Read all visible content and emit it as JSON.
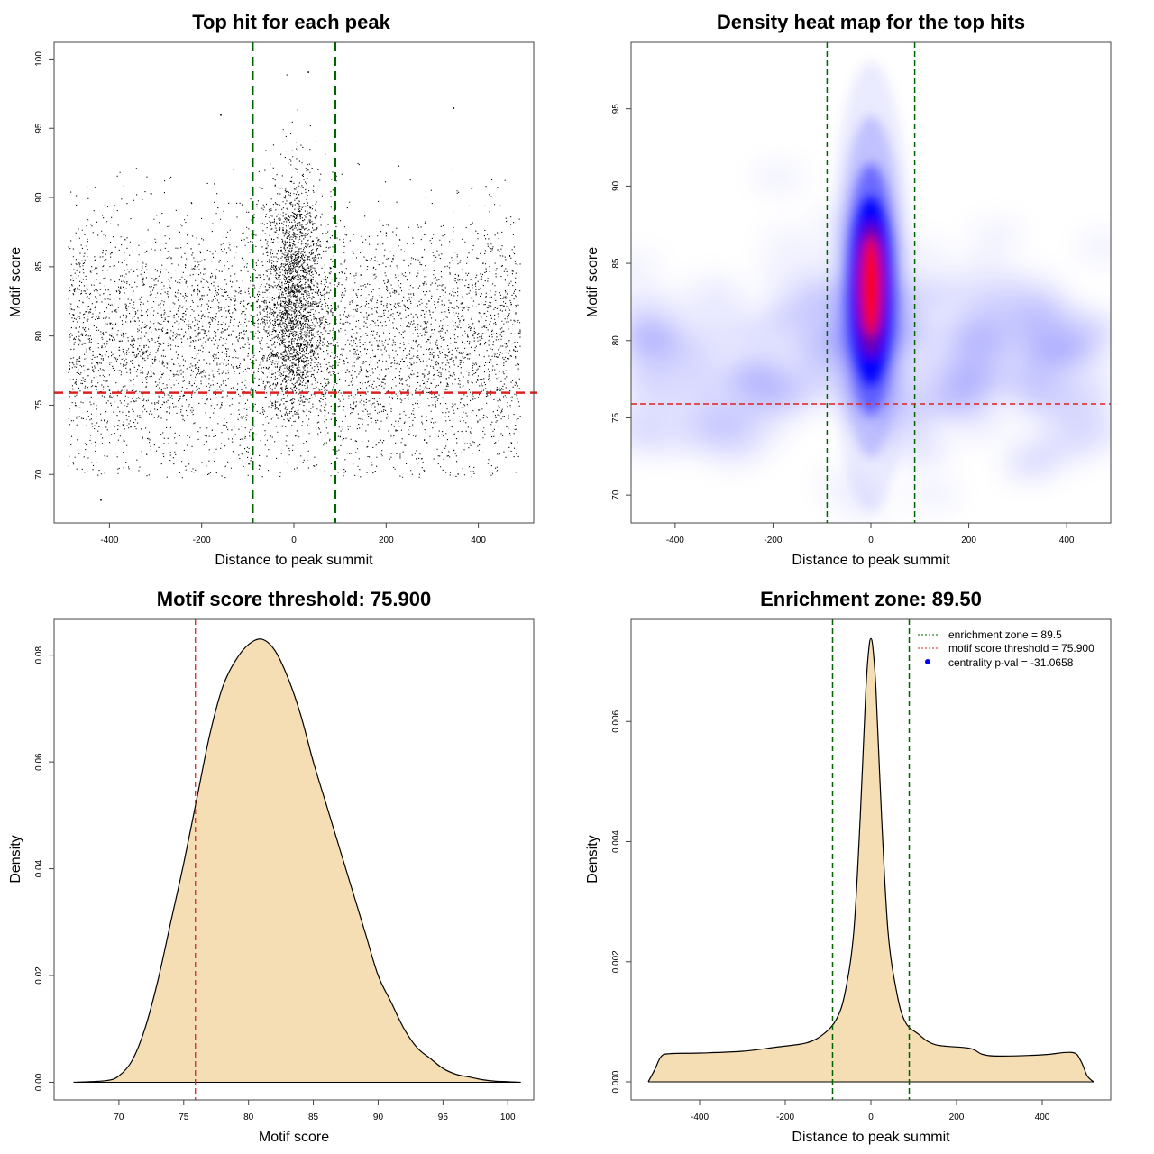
{
  "chart_data": [
    {
      "id": "scatter",
      "type": "scatter",
      "title": "Top hit for each peak",
      "xlabel": "Distance to peak summit",
      "ylabel": "Motif score",
      "xlim": [
        -520,
        520
      ],
      "ylim": [
        66.5,
        101.2
      ],
      "xticks": [
        -400,
        -200,
        0,
        200,
        400
      ],
      "yticks": [
        70,
        75,
        80,
        85,
        90,
        95,
        100
      ],
      "vlines": [
        -89.5,
        89.5
      ],
      "hline": 75.9,
      "line_colors": {
        "vline": "#006400",
        "hline": "#dd2222"
      },
      "point_color": "#000000",
      "distribution": {
        "background": {
          "x_range": [
            -490,
            490
          ],
          "y_mean": 79.5,
          "y_sd": 4.5,
          "approx_count": 6000
        },
        "central_cluster": {
          "x_mean": 0,
          "x_sd": 25,
          "y_mean": 83,
          "y_sd": 4.2,
          "approx_count": 9000
        }
      },
      "notable_points": [
        {
          "x": -420,
          "y": 68.2
        },
        {
          "x": 345,
          "y": 96.5
        },
        {
          "x": 30,
          "y": 99.1
        },
        {
          "x": -160,
          "y": 96.0
        }
      ]
    },
    {
      "id": "heatmap",
      "type": "heatmap",
      "title": "Density heat map for the top hits",
      "xlabel": "Distance to peak summit",
      "ylabel": "Motif score",
      "xlim": [
        -490,
        490
      ],
      "ylim": [
        68.2,
        99.3
      ],
      "xticks": [
        -400,
        -200,
        0,
        200,
        400
      ],
      "yticks": [
        70,
        75,
        80,
        85,
        90,
        95
      ],
      "vlines": [
        -89.5,
        89.5
      ],
      "hline": 75.9,
      "colormap": [
        "#ffffff",
        "#0000ff",
        "#ff0000"
      ],
      "density_peak": {
        "x": 0,
        "y": 83
      }
    },
    {
      "id": "score-density",
      "type": "area",
      "title": "Motif score threshold: 75.900",
      "xlabel": "Motif score",
      "ylabel": "Density",
      "xlim": [
        65,
        102
      ],
      "ylim": [
        -0.0033,
        0.0867
      ],
      "xticks": [
        70,
        75,
        80,
        85,
        90,
        95,
        100
      ],
      "yticks": [
        0.0,
        0.02,
        0.04,
        0.06,
        0.08
      ],
      "ytick_labels": [
        "0.00",
        "0.02",
        "0.04",
        "0.06",
        "0.08"
      ],
      "vline": 75.9,
      "fill": "#f5deb3",
      "x": [
        66.5,
        69,
        70,
        71,
        72,
        73,
        74,
        75,
        76,
        77,
        78,
        79,
        80,
        81,
        82,
        83,
        84,
        85,
        86,
        87,
        88,
        89,
        90,
        91,
        92,
        93,
        94,
        95,
        96,
        97,
        98,
        99,
        101
      ],
      "y": [
        0,
        0.0003,
        0.0012,
        0.004,
        0.01,
        0.019,
        0.03,
        0.041,
        0.053,
        0.065,
        0.074,
        0.079,
        0.082,
        0.083,
        0.081,
        0.076,
        0.069,
        0.06,
        0.052,
        0.044,
        0.036,
        0.028,
        0.02,
        0.015,
        0.01,
        0.0065,
        0.0045,
        0.0026,
        0.0015,
        0.001,
        0.0005,
        0.0002,
        0
      ]
    },
    {
      "id": "distance-density",
      "type": "area",
      "title": "Enrichment zone: 89.50",
      "xlabel": "Distance to peak summit",
      "ylabel": "Density",
      "xlim": [
        -560,
        560
      ],
      "ylim": [
        -0.0003,
        0.0077
      ],
      "xticks": [
        -400,
        -200,
        0,
        200,
        400
      ],
      "yticks": [
        0.0,
        0.002,
        0.004,
        0.006
      ],
      "ytick_labels": [
        "0.000",
        "0.002",
        "0.004",
        "0.006"
      ],
      "vlines": [
        -89.5,
        89.5
      ],
      "fill": "#f5deb3",
      "x": [
        -520,
        -505,
        -490,
        -470,
        -400,
        -300,
        -220,
        -150,
        -110,
        -80,
        -60,
        -40,
        -25,
        -12,
        -5,
        0,
        5,
        12,
        25,
        40,
        60,
        80,
        110,
        150,
        230,
        260,
        300,
        400,
        470,
        490,
        505,
        520
      ],
      "y": [
        0,
        0.0002,
        0.00042,
        0.00047,
        0.00048,
        0.00051,
        0.00058,
        0.00065,
        0.0008,
        0.00105,
        0.0015,
        0.0025,
        0.0044,
        0.0065,
        0.0072,
        0.00738,
        0.0072,
        0.0065,
        0.0044,
        0.0025,
        0.0015,
        0.001,
        0.0008,
        0.00062,
        0.00056,
        0.00046,
        0.00043,
        0.00045,
        0.00049,
        0.00035,
        0.0001,
        0
      ],
      "legend": {
        "position": "top-right",
        "entries": [
          {
            "label": "enrichment zone = 89.5",
            "color": "#006400",
            "style": "dotted-line"
          },
          {
            "label": "motif score threshold = 75.900",
            "color": "#dd2222",
            "style": "dotted-line"
          },
          {
            "label": "centrality p-val = -31.0658",
            "color": "#0000ff",
            "style": "dot"
          }
        ]
      }
    }
  ]
}
